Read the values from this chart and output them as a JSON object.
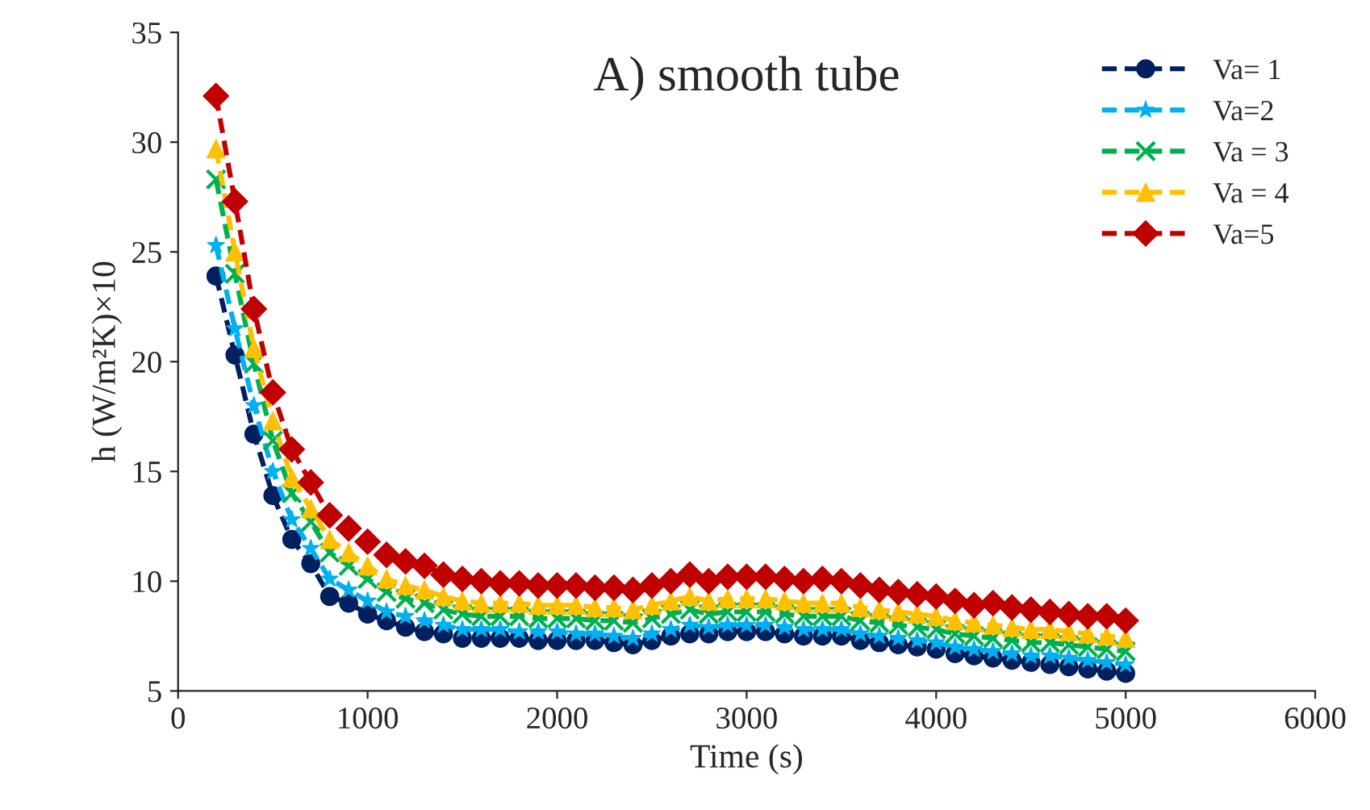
{
  "chart_data": {
    "type": "line",
    "title": "A) smooth tube",
    "xlabel": "Time (s)",
    "ylabel": "h (W/m²K)×10",
    "x": [
      200,
      300,
      400,
      500,
      600,
      700,
      800,
      900,
      1000,
      1100,
      1200,
      1300,
      1400,
      1500,
      1600,
      1700,
      1800,
      1900,
      2000,
      2100,
      2200,
      2300,
      2400,
      2500,
      2600,
      2700,
      2800,
      2900,
      3000,
      3100,
      3200,
      3300,
      3400,
      3500,
      3600,
      3700,
      3800,
      3900,
      4000,
      4100,
      4200,
      4300,
      4400,
      4500,
      4600,
      4700,
      4800,
      4900,
      5000
    ],
    "series": [
      {
        "name": "Va= 1",
        "color": "#002060",
        "marker": "circle",
        "values": [
          23.9,
          20.3,
          16.7,
          13.9,
          11.9,
          10.8,
          9.3,
          9.0,
          8.5,
          8.2,
          7.9,
          7.7,
          7.6,
          7.4,
          7.4,
          7.4,
          7.4,
          7.3,
          7.3,
          7.3,
          7.3,
          7.2,
          7.1,
          7.3,
          7.5,
          7.6,
          7.6,
          7.7,
          7.7,
          7.7,
          7.6,
          7.5,
          7.5,
          7.5,
          7.3,
          7.2,
          7.1,
          7.0,
          6.9,
          6.7,
          6.6,
          6.5,
          6.4,
          6.3,
          6.2,
          6.1,
          6.0,
          5.9,
          5.8
        ]
      },
      {
        "name": "Va=2",
        "color": "#00b0f0",
        "marker": "star",
        "values": [
          25.3,
          21.5,
          18.0,
          15.0,
          12.8,
          11.5,
          10.1,
          9.6,
          9.1,
          8.6,
          8.4,
          8.2,
          8.0,
          7.8,
          7.8,
          7.8,
          7.7,
          7.7,
          7.7,
          7.6,
          7.6,
          7.5,
          7.4,
          7.6,
          7.8,
          8.0,
          7.9,
          8.0,
          8.0,
          8.0,
          7.9,
          7.8,
          7.8,
          7.8,
          7.6,
          7.5,
          7.4,
          7.3,
          7.2,
          7.0,
          6.9,
          6.8,
          6.7,
          6.6,
          6.6,
          6.5,
          6.4,
          6.3,
          6.2
        ]
      },
      {
        "name": "Va = 3",
        "color": "#00b050",
        "marker": "cross",
        "values": [
          28.3,
          24.0,
          19.9,
          16.4,
          14.0,
          12.7,
          11.3,
          10.7,
          10.1,
          9.5,
          9.2,
          9.0,
          8.7,
          8.5,
          8.4,
          8.4,
          8.4,
          8.3,
          8.3,
          8.3,
          8.2,
          8.2,
          8.1,
          8.3,
          8.5,
          8.7,
          8.5,
          8.6,
          8.6,
          8.6,
          8.5,
          8.4,
          8.4,
          8.4,
          8.2,
          8.1,
          8.0,
          7.9,
          7.8,
          7.6,
          7.5,
          7.4,
          7.3,
          7.2,
          7.2,
          7.1,
          7.0,
          6.9,
          6.8
        ]
      },
      {
        "name": "Va = 4",
        "color": "#ffc000",
        "marker": "triangle",
        "values": [
          29.7,
          25.0,
          20.6,
          17.3,
          14.7,
          13.3,
          11.9,
          11.3,
          10.7,
          10.1,
          9.8,
          9.6,
          9.3,
          9.1,
          9.0,
          9.0,
          9.0,
          8.9,
          8.9,
          8.9,
          8.8,
          8.8,
          8.7,
          8.9,
          9.1,
          9.3,
          9.1,
          9.2,
          9.2,
          9.2,
          9.1,
          9.0,
          9.0,
          9.0,
          8.8,
          8.7,
          8.6,
          8.5,
          8.4,
          8.2,
          8.1,
          8.0,
          7.9,
          7.8,
          7.8,
          7.7,
          7.6,
          7.5,
          7.4
        ]
      },
      {
        "name": "Va=5",
        "color": "#c00000",
        "marker": "diamond",
        "values": [
          32.1,
          27.3,
          22.4,
          18.6,
          16.0,
          14.5,
          13.0,
          12.4,
          11.8,
          11.2,
          10.9,
          10.7,
          10.3,
          10.1,
          10.0,
          9.9,
          9.9,
          9.8,
          9.8,
          9.8,
          9.7,
          9.7,
          9.6,
          9.8,
          10.0,
          10.3,
          10.0,
          10.2,
          10.2,
          10.2,
          10.1,
          10.0,
          10.1,
          10.0,
          9.8,
          9.6,
          9.5,
          9.4,
          9.3,
          9.1,
          8.9,
          9.0,
          8.8,
          8.7,
          8.6,
          8.5,
          8.4,
          8.4,
          8.2
        ]
      }
    ],
    "line_style": "dashed",
    "xlim": [
      0,
      6000
    ],
    "xticks": [
      0,
      1000,
      2000,
      3000,
      4000,
      5000,
      6000
    ],
    "ylim": [
      5,
      35
    ],
    "yticks": [
      5,
      10,
      15,
      20,
      25,
      30,
      35
    ],
    "grid": false,
    "legend": "top right"
  }
}
